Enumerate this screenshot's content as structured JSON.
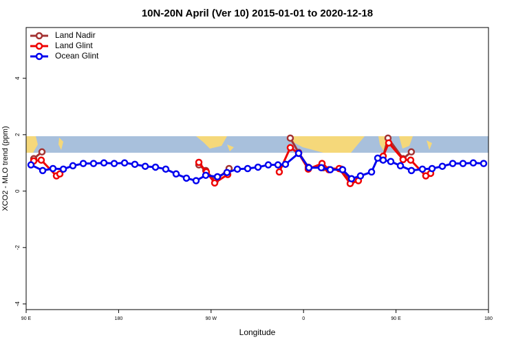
{
  "chart_data": {
    "type": "line",
    "title": "10N-20N April (Ver 10)   2015-01-01 to 2020-12-18",
    "xlabel": "Longitude",
    "ylabel": "XCO2 - MLO trend (ppm)",
    "xlim": [
      90,
      540
    ],
    "xticks": [
      {
        "value": 90,
        "label": "90 E"
      },
      180,
      {
        "value": 270,
        "label": "90 W"
      },
      {
        "value": 360,
        "label": "0"
      },
      {
        "value": 450,
        "label": "90 E"
      },
      {
        "value": 540,
        "label": "180"
      }
    ],
    "ylim": [
      -4.2,
      5.8
    ],
    "yticks": [
      -4,
      -2,
      0,
      2,
      4
    ],
    "legend": "upper left",
    "series": [
      {
        "name": "Land Nadir",
        "color": "#a33232",
        "x": [
          97.4,
          105.4,
          null,
          258.1,
          264.8,
          274.1,
          287.5,
          null,
          347.1,
          355.2,
          364.6,
          379.3,
          396.7,
          406.1,
          null,
          436.8,
          442.2,
          456.9,
          464.9
        ],
        "values": [
          1.15,
          1.39,
          null,
          0.93,
          0.73,
          0.37,
          0.8,
          null,
          1.88,
          1.37,
          0.85,
          0.83,
          0.78,
          0.32,
          null,
          1.12,
          1.88,
          1.15,
          1.39
        ]
      },
      {
        "name": "Land Glint",
        "color": "#ee0000",
        "x": [
          97.4,
          104.7,
          119.5,
          122.8,
          null,
          258.1,
          265.4,
          273.5,
          286.2,
          null,
          336.4,
          347.1,
          355.2,
          364.6,
          378,
          384.6,
          394.7,
          405.4,
          413.4,
          null,
          437.5,
          442.9,
          456.9,
          464.3,
          479,
          483.7
        ],
        "values": [
          1.07,
          1.1,
          0.54,
          0.61,
          null,
          1.02,
          0.68,
          0.29,
          0.59,
          null,
          0.68,
          1.54,
          1.34,
          0.78,
          0.98,
          0.76,
          0.8,
          0.27,
          0.37,
          null,
          1.24,
          1.71,
          1.12,
          1.1,
          0.54,
          0.63
        ]
      },
      {
        "name": "Ocean Glint",
        "color": "#0000ee",
        "x": [
          94.7,
          106.1,
          116.1,
          126.2,
          135.5,
          145.6,
          155.6,
          165.7,
          175.7,
          185.8,
          195.8,
          205.9,
          215.9,
          225.9,
          236,
          246,
          255.4,
          264.8,
          276.2,
          285.5,
          295.6,
          305.6,
          315.7,
          325.7,
          335.1,
          342.4,
          355.2,
          365.2,
          377.3,
          386,
          398,
          406.7,
          415.4,
          426.2,
          432.2,
          437.5,
          444.9,
          454.3,
          465,
          475.7,
          485.1,
          495.1,
          505.2,
          515.2,
          525.2,
          535.3
        ],
        "values": [
          0.93,
          0.73,
          0.8,
          0.78,
          0.9,
          0.98,
          0.98,
          1.0,
          0.98,
          1.0,
          0.95,
          0.88,
          0.85,
          0.78,
          0.61,
          0.46,
          0.37,
          0.56,
          0.51,
          0.66,
          0.78,
          0.8,
          0.85,
          0.93,
          0.93,
          0.95,
          1.34,
          0.83,
          0.83,
          0.76,
          0.76,
          0.44,
          0.54,
          0.68,
          1.17,
          1.1,
          1.05,
          0.9,
          0.73,
          0.78,
          0.8,
          0.88,
          0.98,
          0.98,
          1.0,
          0.98
        ]
      }
    ]
  }
}
